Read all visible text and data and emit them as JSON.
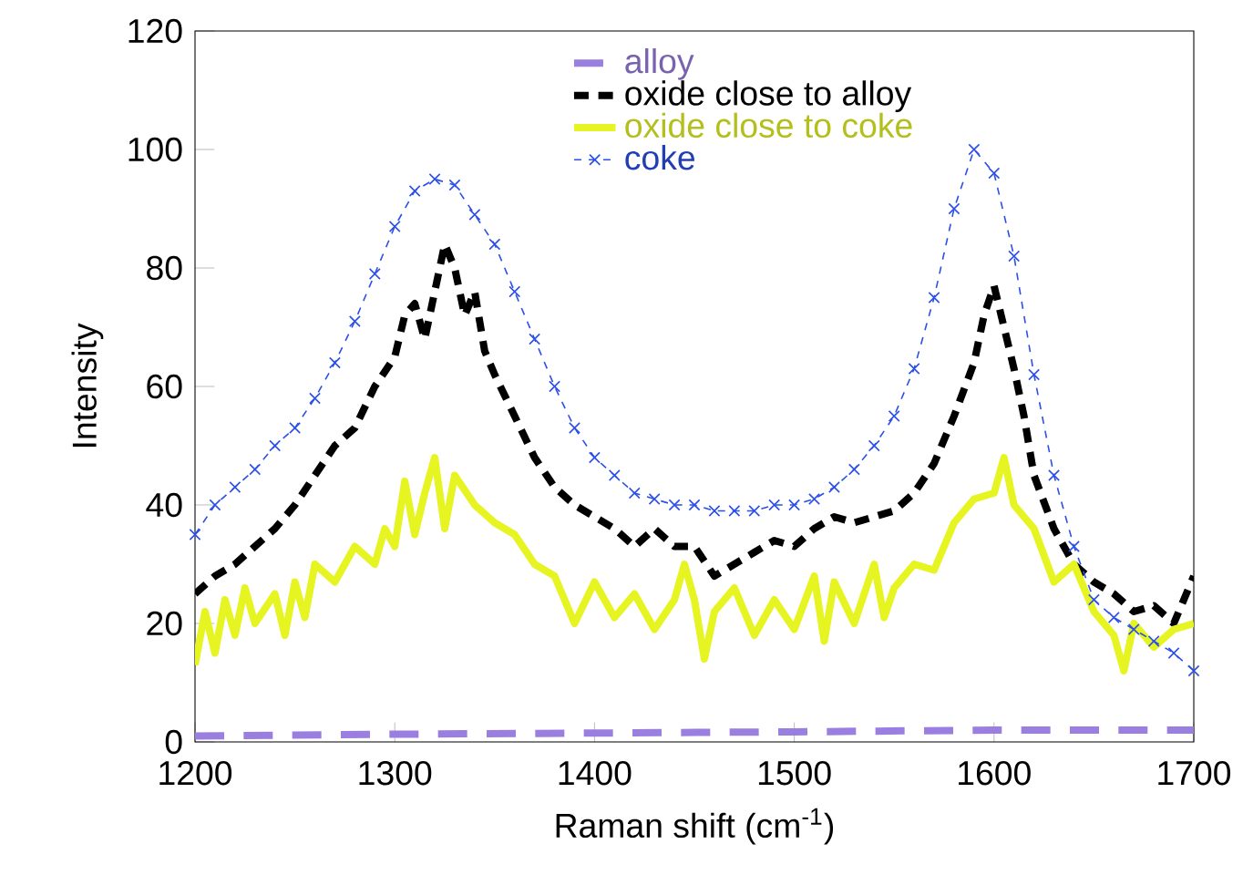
{
  "chart_data": {
    "type": "line",
    "xlabel": "Raman shift (cm$^{-1}$)",
    "ylabel": "Intensity",
    "xlim": [
      1200,
      1700
    ],
    "ylim": [
      0,
      120
    ],
    "xticks": [
      1200,
      1300,
      1400,
      1500,
      1600,
      1700
    ],
    "yticks": [
      0,
      20,
      40,
      60,
      80,
      100,
      120
    ],
    "grid": false,
    "legend": "top",
    "series": [
      {
        "name": "alloy",
        "color": "#9b7fe0",
        "line_style": "dashed",
        "marker": "none",
        "x": [
          1200,
          1300,
          1400,
          1500,
          1600,
          1700
        ],
        "values": [
          1,
          1.3,
          1.5,
          1.7,
          2,
          2
        ]
      },
      {
        "name": "oxide close to alloy",
        "color": "#000000",
        "line_style": "dashed",
        "marker": "none",
        "x": [
          1200,
          1210,
          1220,
          1230,
          1240,
          1250,
          1260,
          1270,
          1280,
          1290,
          1300,
          1305,
          1310,
          1315,
          1320,
          1325,
          1330,
          1335,
          1340,
          1345,
          1350,
          1360,
          1370,
          1380,
          1390,
          1400,
          1410,
          1420,
          1430,
          1440,
          1450,
          1460,
          1470,
          1480,
          1490,
          1500,
          1510,
          1520,
          1530,
          1540,
          1550,
          1560,
          1570,
          1580,
          1590,
          1595,
          1600,
          1605,
          1610,
          1615,
          1620,
          1630,
          1640,
          1650,
          1660,
          1670,
          1680,
          1690,
          1700
        ],
        "values": [
          25,
          28,
          30,
          33,
          36,
          40,
          45,
          50,
          53,
          60,
          65,
          72,
          74,
          68,
          76,
          84,
          80,
          72,
          76,
          66,
          62,
          55,
          48,
          43,
          40,
          38,
          36,
          33,
          36,
          33,
          33,
          28,
          30,
          32,
          34,
          33,
          36,
          38,
          37,
          38,
          39,
          42,
          47,
          55,
          64,
          72,
          77,
          70,
          63,
          55,
          45,
          36,
          30,
          27,
          25,
          22,
          23,
          20,
          28
        ]
      },
      {
        "name": "oxide close to coke",
        "color": "#e6f522",
        "line_style": "solid",
        "marker": "none",
        "x": [
          1200,
          1205,
          1210,
          1215,
          1220,
          1225,
          1230,
          1240,
          1245,
          1250,
          1255,
          1260,
          1270,
          1280,
          1290,
          1295,
          1300,
          1305,
          1310,
          1315,
          1320,
          1325,
          1330,
          1340,
          1350,
          1360,
          1370,
          1380,
          1390,
          1400,
          1410,
          1420,
          1430,
          1440,
          1445,
          1450,
          1455,
          1460,
          1470,
          1480,
          1490,
          1500,
          1510,
          1515,
          1520,
          1530,
          1540,
          1545,
          1550,
          1560,
          1570,
          1580,
          1590,
          1600,
          1605,
          1610,
          1620,
          1630,
          1640,
          1650,
          1660,
          1665,
          1670,
          1680,
          1690,
          1700
        ],
        "values": [
          13,
          22,
          15,
          24,
          18,
          26,
          20,
          25,
          18,
          27,
          21,
          30,
          27,
          33,
          30,
          36,
          33,
          44,
          35,
          42,
          48,
          36,
          45,
          40,
          37,
          35,
          30,
          28,
          20,
          27,
          21,
          25,
          19,
          24,
          30,
          24,
          14,
          22,
          26,
          18,
          24,
          19,
          28,
          17,
          27,
          20,
          30,
          21,
          26,
          30,
          29,
          37,
          41,
          42,
          48,
          40,
          36,
          27,
          30,
          22,
          18,
          12,
          20,
          16,
          19,
          20
        ]
      },
      {
        "name": "coke",
        "color": "#2b4fe8",
        "line_style": "dashed",
        "marker": "cross",
        "x": [
          1200,
          1210,
          1220,
          1230,
          1240,
          1250,
          1260,
          1270,
          1280,
          1290,
          1300,
          1310,
          1320,
          1330,
          1340,
          1350,
          1360,
          1370,
          1380,
          1390,
          1400,
          1410,
          1420,
          1430,
          1440,
          1450,
          1460,
          1470,
          1480,
          1490,
          1500,
          1510,
          1520,
          1530,
          1540,
          1550,
          1560,
          1570,
          1580,
          1590,
          1600,
          1610,
          1620,
          1630,
          1640,
          1650,
          1660,
          1670,
          1680,
          1690,
          1700
        ],
        "values": [
          35,
          40,
          43,
          46,
          50,
          53,
          58,
          64,
          71,
          79,
          87,
          93,
          95,
          94,
          89,
          84,
          76,
          68,
          60,
          53,
          48,
          45,
          42,
          41,
          40,
          40,
          39,
          39,
          39,
          40,
          40,
          41,
          43,
          46,
          50,
          55,
          63,
          75,
          90,
          100,
          96,
          82,
          62,
          45,
          33,
          24,
          21,
          19,
          17,
          15,
          12
        ]
      }
    ]
  }
}
